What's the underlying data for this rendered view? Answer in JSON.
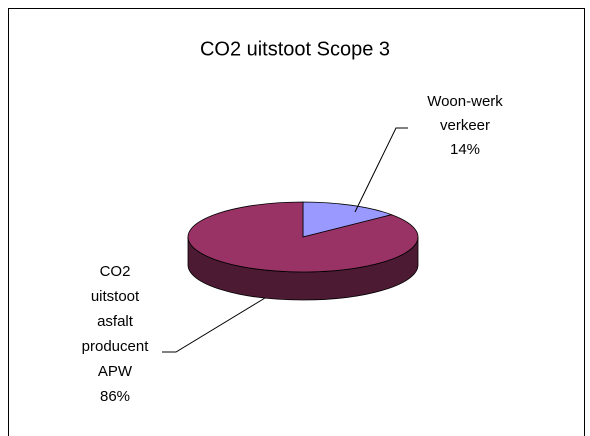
{
  "chart_data": {
    "type": "pie",
    "title": "CO2 uitstoot Scope 3",
    "categories": [
      "Woon-werk verkeer",
      "CO2 uitstoot asfalt producent APW"
    ],
    "values": [
      14,
      86
    ],
    "value_labels": [
      "14%",
      "86%"
    ],
    "colors": [
      "#9999ff",
      "#993366"
    ],
    "three_d": true
  }
}
